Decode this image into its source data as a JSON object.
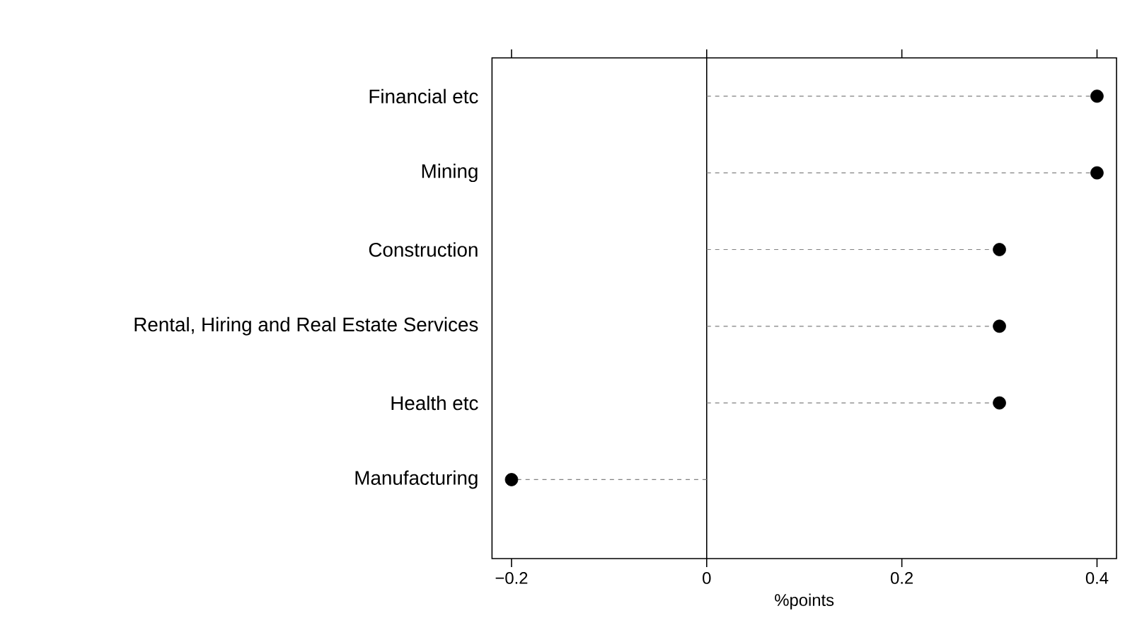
{
  "chart_data": {
    "type": "lollipop",
    "orientation": "horizontal",
    "xlabel": "%points",
    "categories": [
      "Financial etc",
      "Mining",
      "Construction",
      "Rental, Hiring and Real Estate Services",
      "Health etc",
      "Manufacturing"
    ],
    "values": [
      0.4,
      0.4,
      0.3,
      0.3,
      0.3,
      -0.2
    ],
    "color": "#000000",
    "marker": "circle",
    "line_style": "dashed",
    "xlim": [
      -0.22,
      0.42
    ],
    "xticks": [
      {
        "value": -0.2,
        "label": "−0.2"
      },
      0,
      0.2,
      0.4
    ],
    "ref_lines": [
      {
        "axis": "x",
        "value": 0
      }
    ]
  }
}
